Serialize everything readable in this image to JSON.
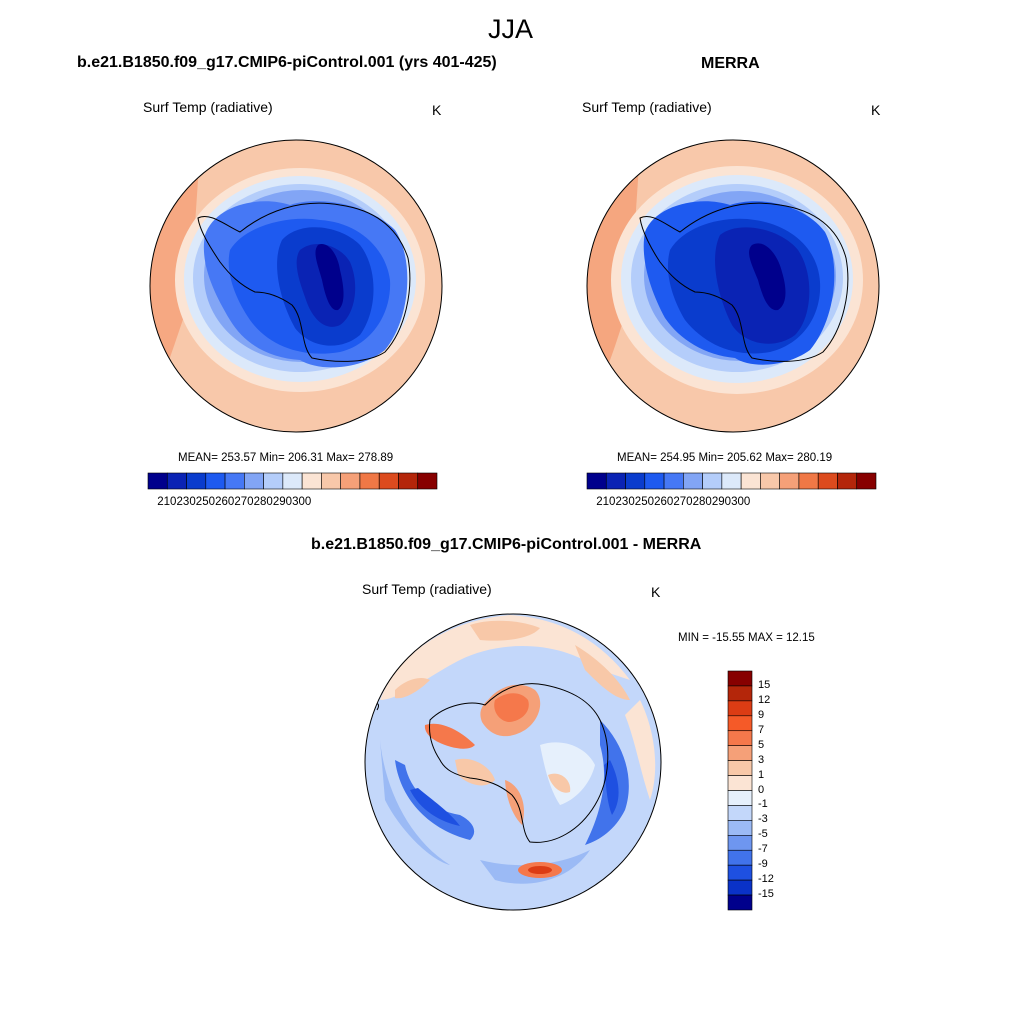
{
  "figure": {
    "season": "JJA"
  },
  "panels": [
    {
      "id": "model",
      "title": "b.e21.B1850.f09_g17.CMIP6-piControl.001 (yrs 401-425)",
      "variable": "Surf Temp (radiative)",
      "units": "K",
      "stats": "MEAN= 253.57  Min= 206.31  Max= 278.89"
    },
    {
      "id": "obs",
      "title": "MERRA",
      "variable": "Surf Temp (radiative)",
      "units": "K",
      "stats": "MEAN= 254.95  Min= 205.62  Max= 280.19"
    },
    {
      "id": "diff",
      "title": "b.e21.B1850.f09_g17.CMIP6-piControl.001 - MERRA",
      "variable": "Surf Temp (radiative)",
      "units": "K",
      "stats": "MIN = -15.55 MAX =  12.15"
    }
  ],
  "colorbar_abs": {
    "colors": [
      "#00008c",
      "#0a23b4",
      "#0a3ccd",
      "#1e5af0",
      "#4678f5",
      "#82a5f5",
      "#b4cdfa",
      "#dce9fa",
      "#fbe4d4",
      "#f8c8aa",
      "#f5a078",
      "#f07846",
      "#dc4b1e",
      "#b4260a",
      "#870000"
    ],
    "tick_labels": [
      "210",
      "230",
      "250",
      "260",
      "270",
      "280",
      "290",
      "300"
    ]
  },
  "colorbar_diff": {
    "colors": [
      "#870000",
      "#b4260a",
      "#dc3c14",
      "#f55a28",
      "#f5784b",
      "#f5a078",
      "#f8c8a8",
      "#fbe4d4",
      "#e6f0fc",
      "#c3d7fa",
      "#9bbaf5",
      "#6e96f0",
      "#4173eb",
      "#1e50e1",
      "#0a32c8",
      "#00008c"
    ],
    "tick_labels": [
      "15",
      "12",
      "9",
      "7",
      "5",
      "3",
      "1",
      "0",
      "-1",
      "-3",
      "-5",
      "-7",
      "-9",
      "-12",
      "-15"
    ]
  }
}
